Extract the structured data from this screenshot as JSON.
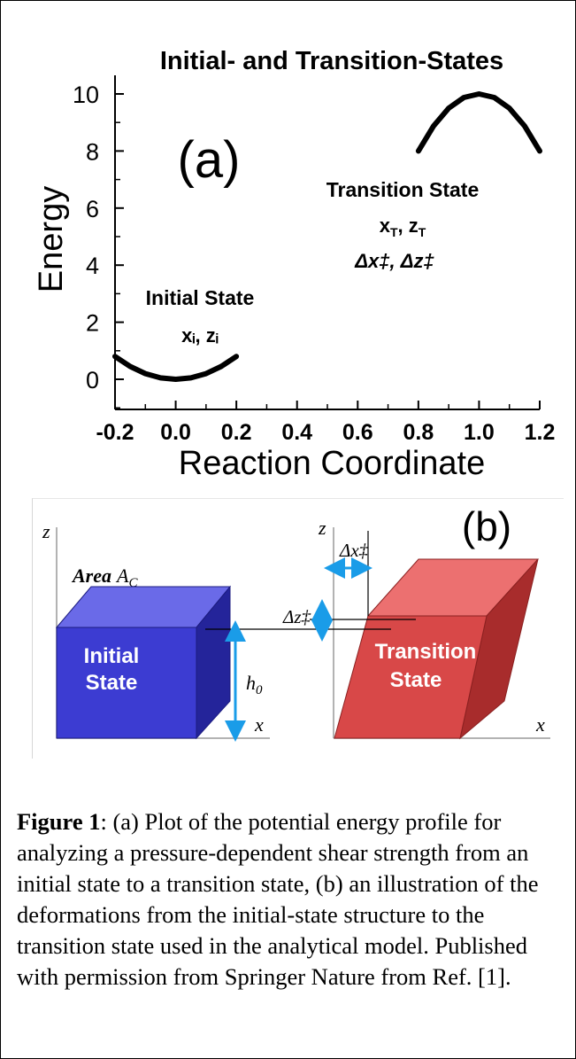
{
  "chart_data": {
    "type": "line",
    "title": "Initial- and Transition-States",
    "panel_label": "(a)",
    "xlabel": "Reaction Coordinate",
    "ylabel": "Energy",
    "xlim": [
      -0.2,
      1.2
    ],
    "ylim": [
      -1,
      10.5
    ],
    "x_ticks": [
      "-0.2",
      "0.0",
      "0.2",
      "0.4",
      "0.6",
      "0.8",
      "1.0",
      "1.2"
    ],
    "y_ticks": [
      "0",
      "2",
      "4",
      "6",
      "8",
      "10"
    ],
    "x_tick_values": [
      -0.2,
      0.0,
      0.2,
      0.4,
      0.6,
      0.8,
      1.0,
      1.2
    ],
    "y_tick_values": [
      0,
      2,
      4,
      6,
      8,
      10
    ],
    "series": [
      {
        "x": [
          -0.2,
          -0.15,
          -0.1,
          -0.05,
          0.0,
          0.05,
          0.1,
          0.15,
          0.2
        ],
        "y": [
          0.8,
          0.45,
          0.2,
          0.05,
          0.0,
          0.05,
          0.2,
          0.45,
          0.8
        ]
      },
      {
        "x": [
          0.8,
          0.85,
          0.9,
          0.95,
          1.0,
          1.05,
          1.1,
          1.15,
          1.2
        ],
        "y": [
          8.0,
          8.875,
          9.5,
          9.875,
          10.0,
          9.875,
          9.5,
          8.875,
          8.0
        ]
      }
    ],
    "annotations": {
      "initial_title": "Initial State",
      "initial_vars": "xᵢ, zᵢ",
      "transition_title": "Transition State",
      "transition_vars": "x",
      "transition_vars_sub1": "T",
      "transition_vars_mid": ", z",
      "transition_vars_sub2": "T",
      "transition_deltas": "Δx‡, Δz‡"
    },
    "grid": false,
    "color": "#000000"
  },
  "panel_b": {
    "label": "(b)",
    "axis_z_left": "z",
    "axis_x_left": "x",
    "axis_z_right": "z",
    "axis_x_right": "x",
    "area_label_bold": "Area",
    "area_label_math": "A",
    "area_label_sub": "C",
    "initial_block_text": [
      "Initial",
      "State"
    ],
    "transition_block_text": [
      "Transition",
      "State"
    ],
    "height_label": "h",
    "height_sub": "0",
    "delta_x_label": "Δx‡",
    "delta_z_label": "Δz‡",
    "colors": {
      "initial_front": "#3c3cd2",
      "initial_top": "#6a6ae8",
      "initial_side": "#24249a",
      "transition_front": "#d84848",
      "transition_top": "#ec7070",
      "transition_side": "#a82c2c",
      "arrow": "#1a9ce8"
    }
  },
  "caption": {
    "label": "Figure 1",
    "text": ": (a) Plot of the potential energy profile for analyzing a pressure-dependent shear strength from an initial state to a transition state, (b) an illustration of the deformations from the initial-state structure to the transition state used in the analytical model. Published with permission from Springer Nature from Ref. [1]."
  }
}
